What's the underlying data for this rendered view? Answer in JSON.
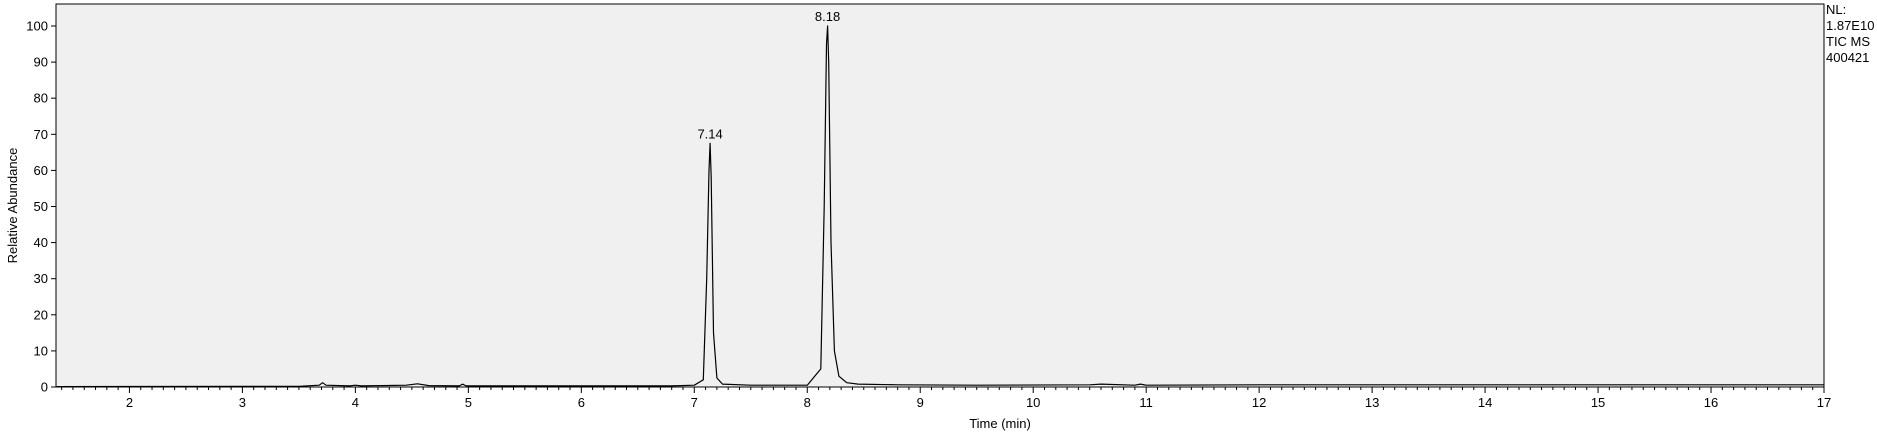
{
  "chart_data": {
    "type": "line",
    "title": "",
    "xlabel": "Time (min)",
    "ylabel": "Relative Abundance",
    "xlim": [
      1.35,
      17.0
    ],
    "ylim": [
      0,
      100
    ],
    "x_ticks": [
      2,
      3,
      4,
      5,
      6,
      7,
      8,
      9,
      10,
      11,
      12,
      13,
      14,
      15,
      16,
      17
    ],
    "y_ticks": [
      0,
      10,
      20,
      30,
      40,
      50,
      60,
      70,
      80,
      90,
      100
    ],
    "grid": false,
    "legend": "none",
    "colors": {
      "plot_background": "#f0f0f0",
      "trace": "#000000"
    },
    "peaks": [
      {
        "rt": 7.14,
        "height": 67.5,
        "label": "7.14"
      },
      {
        "rt": 8.18,
        "height": 100,
        "label": "8.18"
      }
    ],
    "series": [
      {
        "x": [
          1.35,
          3.5,
          3.68,
          3.71,
          3.74,
          3.95,
          4.0,
          4.05,
          4.45,
          4.55,
          4.65,
          4.92,
          4.95,
          4.98,
          6.8,
          7.0,
          7.08,
          7.11,
          7.13,
          7.14,
          7.15,
          7.17,
          7.2,
          7.25,
          7.5,
          8.0,
          8.12,
          8.15,
          8.17,
          8.18,
          8.19,
          8.21,
          8.24,
          8.28,
          8.35,
          8.45,
          8.8,
          9.5,
          10.5,
          10.6,
          10.9,
          10.95,
          11.0,
          12.0,
          17.0
        ],
        "y": [
          0.1,
          0.2,
          0.5,
          1.2,
          0.5,
          0.3,
          0.5,
          0.3,
          0.5,
          0.9,
          0.4,
          0.3,
          0.8,
          0.3,
          0.3,
          0.5,
          2.0,
          30.0,
          60.0,
          67.5,
          58.0,
          15.0,
          2.5,
          0.8,
          0.5,
          0.5,
          5.0,
          50.0,
          95.0,
          100,
          90.0,
          40.0,
          10.0,
          3.0,
          1.2,
          0.8,
          0.6,
          0.5,
          0.6,
          0.8,
          0.5,
          0.8,
          0.5,
          0.6,
          0.6
        ]
      }
    ]
  },
  "side_info": {
    "nl_label": "NL:",
    "nl_value": "1.87E10",
    "trace_type": "TIC  MS",
    "sample_id": "400421"
  }
}
